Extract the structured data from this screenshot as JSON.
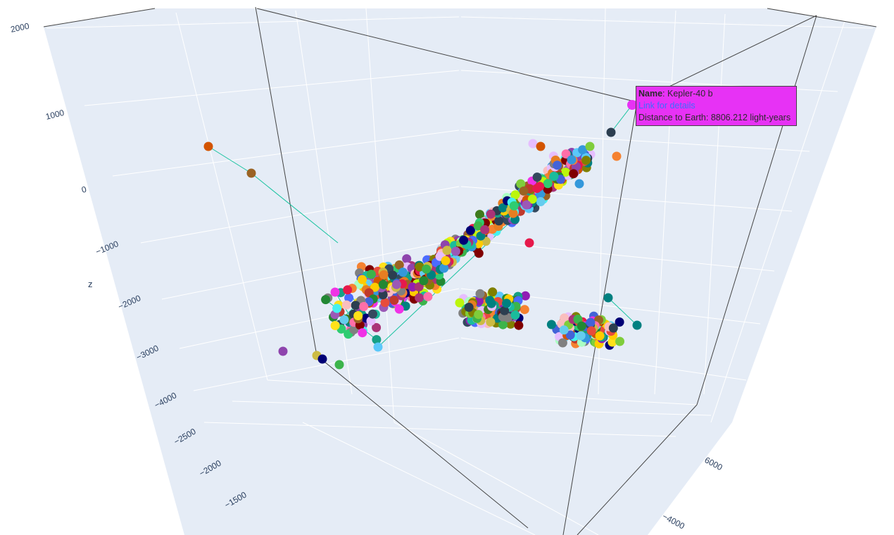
{
  "chart_data": {
    "type": "scatter3d",
    "mode": "markers+lines",
    "line_color": "#19c3a0",
    "axes": {
      "z": {
        "label": "z",
        "ticks": [
          "2000",
          "1000",
          "0",
          "−1000",
          "−2000",
          "−3000",
          "−4000"
        ],
        "range": [
          -4500,
          2000
        ]
      },
      "x": {
        "label": "",
        "ticks": [
          "−2500",
          "−2000",
          "−1500"
        ]
      },
      "y": {
        "label": "",
        "ticks": [
          "6000",
          "−4000"
        ]
      }
    },
    "grid": true,
    "scene_background": "#e5ecf6",
    "highlighted_point": {
      "name_label": "Name",
      "name": "Kepler-40 b",
      "link_text": "Link for details",
      "distance_text": "Distance to Earth: 8806.212 light-years",
      "color": "#e732f5"
    },
    "clusters": [
      {
        "name": "",
        "count": 260,
        "center": [
          560,
          405
        ],
        "spread": [
          70,
          40
        ]
      },
      {
        "name": "",
        "count": 520,
        "center": [
          720,
          300
        ],
        "spread": [
          60,
          50
        ]
      },
      {
        "name": "",
        "count": 160,
        "center": [
          700,
          440
        ],
        "spread": [
          60,
          30
        ]
      },
      {
        "name": "",
        "count": 120,
        "center": [
          830,
          470
        ],
        "spread": [
          60,
          30
        ]
      },
      {
        "name": "",
        "count": 50,
        "center": [
          500,
          450
        ],
        "spread": [
          50,
          50
        ]
      }
    ]
  }
}
